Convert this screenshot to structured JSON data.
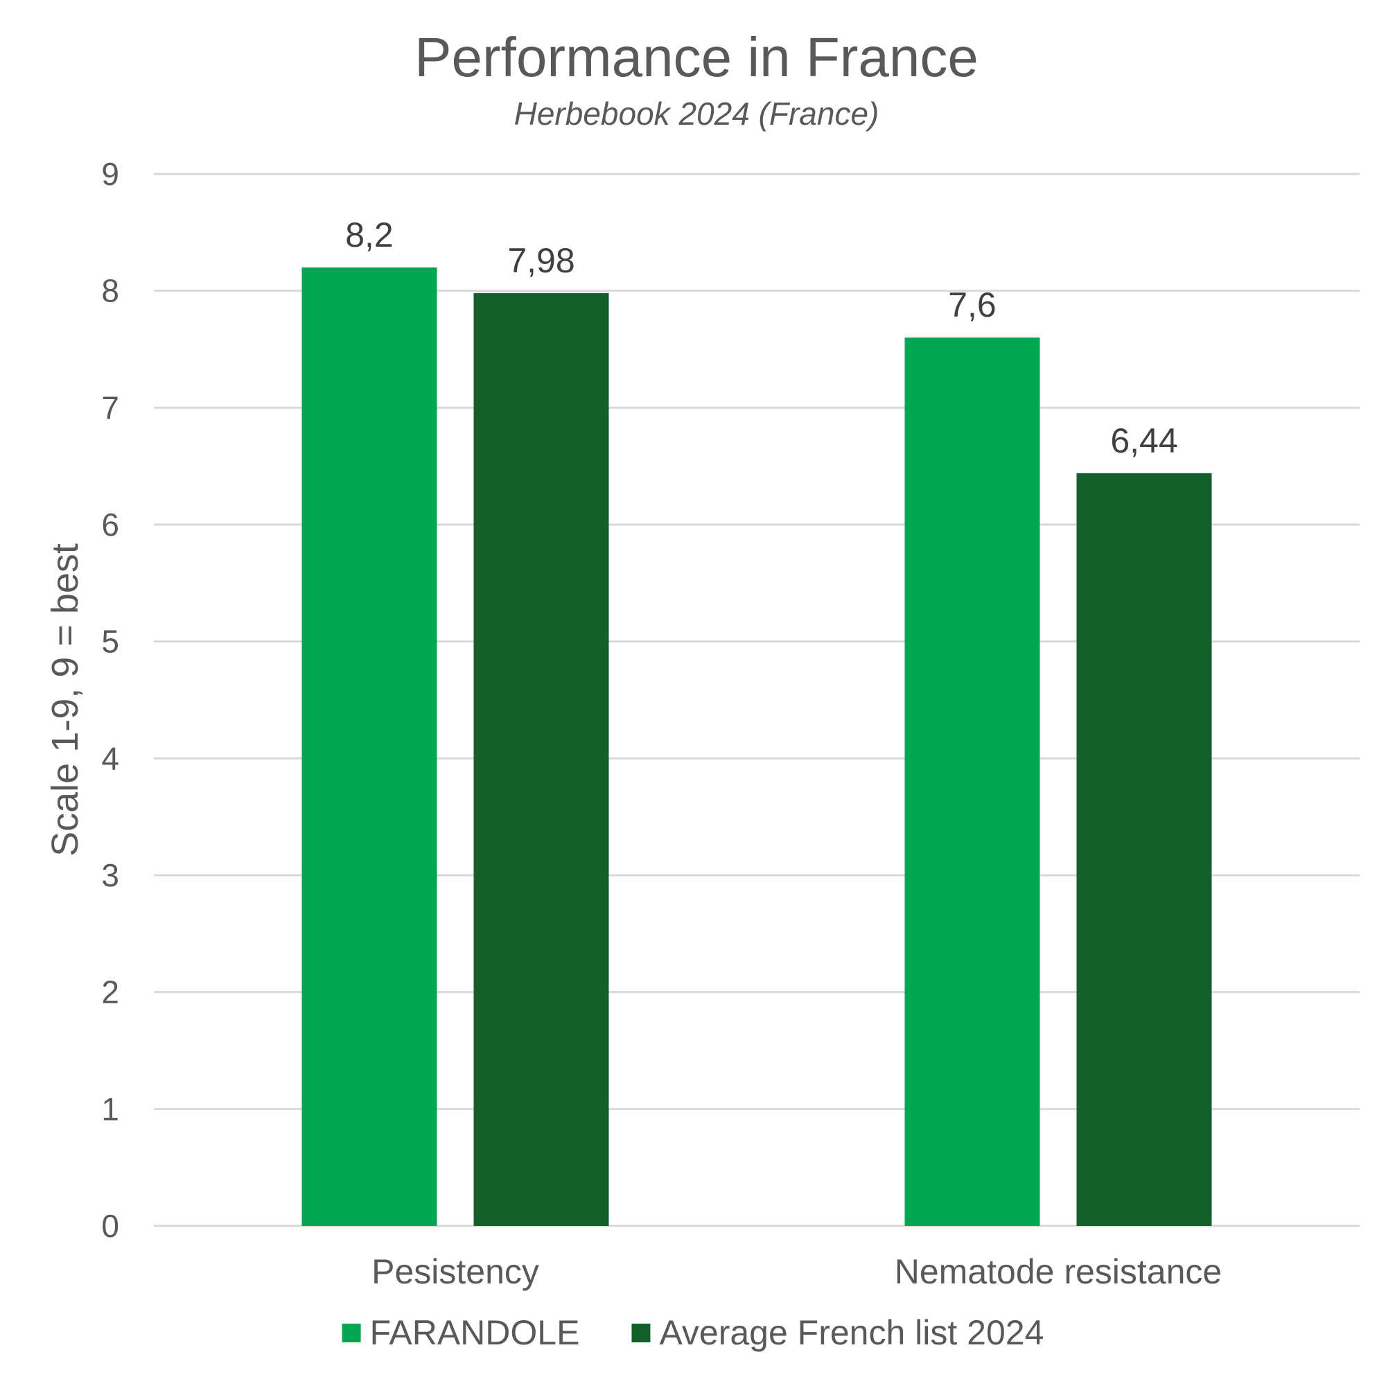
{
  "chart_data": {
    "type": "bar",
    "title": "Performance in France",
    "subtitle": "Herbebook 2024 (France)",
    "ylabel": "Scale 1-9, 9 = best",
    "xlabel": "",
    "ylim": [
      0,
      9
    ],
    "yticks": [
      0,
      1,
      2,
      3,
      4,
      5,
      6,
      7,
      8,
      9
    ],
    "grid": true,
    "legend_position": "bottom",
    "categories": [
      "Pesistency",
      "Nematode resistance"
    ],
    "series": [
      {
        "name": "FARANDOLE",
        "color": "#00a651",
        "values": [
          8.2,
          7.6
        ],
        "labels": [
          "8,2",
          "7,6"
        ]
      },
      {
        "name": "Average French list 2024",
        "color": "#155f2d",
        "values": [
          7.98,
          6.44
        ],
        "labels": [
          "7,98",
          "6,44"
        ]
      }
    ]
  }
}
